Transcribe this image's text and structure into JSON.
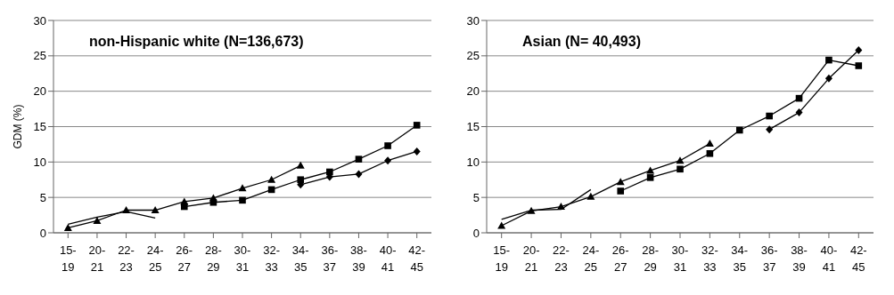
{
  "chart_data": [
    {
      "type": "line",
      "title": "non-Hispanic white (N=136,673)",
      "ylabel": "GDM (%)",
      "categories": [
        "15-19",
        "20-21",
        "22-23",
        "24-25",
        "26-27",
        "28-29",
        "30-31",
        "32-33",
        "34-35",
        "36-37",
        "38-39",
        "40-41",
        "42-45"
      ],
      "ylim": [
        0,
        30
      ],
      "yticks": [
        0,
        5,
        10,
        15,
        20,
        25,
        30
      ],
      "grid": "y",
      "series": [
        {
          "color": "#000000",
          "marker": "none",
          "values": [
            1.2,
            2.2,
            3.0,
            2.1,
            null,
            null,
            null,
            null,
            null,
            null,
            null,
            null,
            null
          ]
        },
        {
          "color": "#000000",
          "marker": "triangle",
          "values": [
            0.7,
            1.7,
            3.2,
            3.2,
            4.4,
            4.9,
            6.3,
            7.5,
            9.5,
            null,
            null,
            null,
            null
          ]
        },
        {
          "color": "#000000",
          "marker": "square",
          "values": [
            null,
            null,
            null,
            null,
            3.7,
            4.3,
            4.6,
            6.1,
            7.5,
            8.6,
            10.4,
            12.3,
            15.2
          ]
        },
        {
          "color": "#000000",
          "marker": "diamond",
          "values": [
            null,
            null,
            null,
            null,
            null,
            null,
            null,
            null,
            6.8,
            7.9,
            8.3,
            10.2,
            11.5
          ]
        }
      ]
    },
    {
      "type": "line",
      "title": "Asian (N= 40,493)",
      "categories": [
        "15-19",
        "20-21",
        "22-23",
        "24-25",
        "26-27",
        "28-29",
        "30-31",
        "32-33",
        "34-35",
        "36-37",
        "38-39",
        "40-41",
        "42-45"
      ],
      "ylim": [
        0,
        30
      ],
      "yticks": [
        0,
        5,
        10,
        15,
        20,
        25,
        30
      ],
      "grid": "y",
      "series": [
        {
          "color": "#000000",
          "marker": "none",
          "values": [
            1.9,
            3.2,
            3.3,
            6.1,
            null,
            null,
            null,
            null,
            null,
            null,
            null,
            null,
            null
          ]
        },
        {
          "color": "#000000",
          "marker": "triangle",
          "values": [
            1.0,
            3.1,
            3.7,
            5.1,
            7.2,
            8.8,
            10.2,
            12.6,
            null,
            null,
            null,
            null,
            null
          ]
        },
        {
          "color": "#000000",
          "marker": "square",
          "values": [
            null,
            null,
            null,
            null,
            5.9,
            7.8,
            9.0,
            11.2,
            14.5,
            16.5,
            19.0,
            24.4,
            23.6
          ]
        },
        {
          "color": "#000000",
          "marker": "diamond",
          "values": [
            null,
            null,
            null,
            null,
            null,
            null,
            null,
            null,
            null,
            14.6,
            17.0,
            21.8,
            25.8
          ]
        }
      ]
    }
  ]
}
